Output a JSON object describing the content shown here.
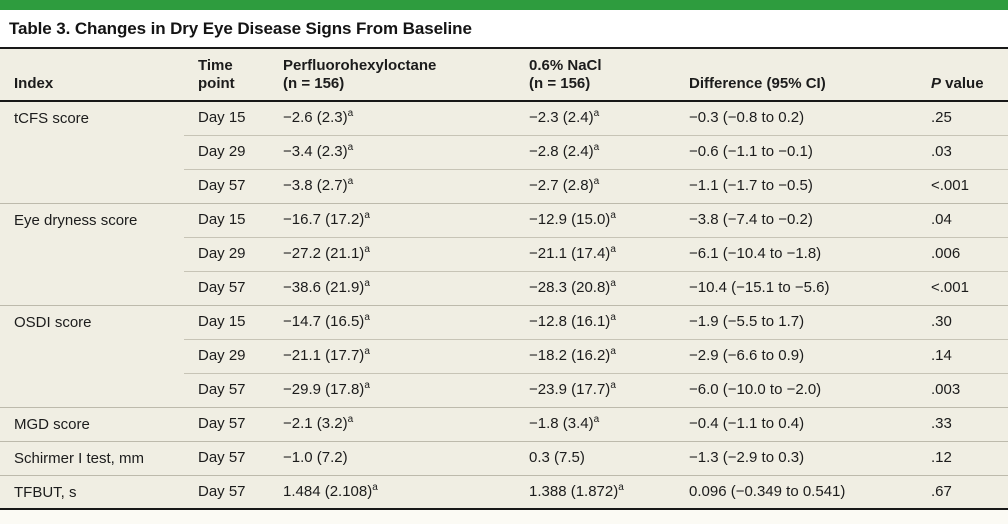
{
  "accent_color": "#2e9c3e",
  "table_background": "#f0eee3",
  "rule_color": "#181818",
  "divider_color": "#c7c4b6",
  "title": "Table 3. Changes in Dry Eye Disease Signs From Baseline",
  "columns": [
    {
      "label": "Index"
    },
    {
      "label": "Time\npoint"
    },
    {
      "label": "Perfluorohexyloctane\n(n = 156)"
    },
    {
      "label": "0.6% NaCl\n(n = 156)"
    },
    {
      "label": "Difference (95% CI)"
    },
    {
      "italic": "P",
      "rest": " value"
    }
  ],
  "footnote_marker": "a",
  "groups": [
    {
      "index": "tCFS score",
      "rows": [
        {
          "time_point": "Day 15",
          "pfho": "−2.6 (2.3)",
          "pfho_sup": "a",
          "nacl": "−2.3 (2.4)",
          "nacl_sup": "a",
          "difference": "−0.3 (−0.8 to 0.2)",
          "p_value": ".25"
        },
        {
          "time_point": "Day 29",
          "pfho": "−3.4 (2.3)",
          "pfho_sup": "a",
          "nacl": "−2.8 (2.4)",
          "nacl_sup": "a",
          "difference": "−0.6 (−1.1 to −0.1)",
          "p_value": ".03"
        },
        {
          "time_point": "Day 57",
          "pfho": "−3.8 (2.7)",
          "pfho_sup": "a",
          "nacl": "−2.7 (2.8)",
          "nacl_sup": "a",
          "difference": "−1.1 (−1.7 to −0.5)",
          "p_value": "<.001"
        }
      ]
    },
    {
      "index": "Eye dryness score",
      "rows": [
        {
          "time_point": "Day 15",
          "pfho": "−16.7 (17.2)",
          "pfho_sup": "a",
          "nacl": "−12.9 (15.0)",
          "nacl_sup": "a",
          "difference": "−3.8 (−7.4 to −0.2)",
          "p_value": ".04"
        },
        {
          "time_point": "Day 29",
          "pfho": "−27.2 (21.1)",
          "pfho_sup": "a",
          "nacl": "−21.1 (17.4)",
          "nacl_sup": "a",
          "difference": "−6.1 (−10.4 to −1.8)",
          "p_value": ".006"
        },
        {
          "time_point": "Day 57",
          "pfho": "−38.6 (21.9)",
          "pfho_sup": "a",
          "nacl": "−28.3 (20.8)",
          "nacl_sup": "a",
          "difference": "−10.4 (−15.1 to −5.6)",
          "p_value": "<.001"
        }
      ]
    },
    {
      "index": "OSDI score",
      "rows": [
        {
          "time_point": "Day 15",
          "pfho": "−14.7 (16.5)",
          "pfho_sup": "a",
          "nacl": "−12.8 (16.1)",
          "nacl_sup": "a",
          "difference": "−1.9 (−5.5 to 1.7)",
          "p_value": ".30"
        },
        {
          "time_point": "Day 29",
          "pfho": "−21.1 (17.7)",
          "pfho_sup": "a",
          "nacl": "−18.2 (16.2)",
          "nacl_sup": "a",
          "difference": "−2.9 (−6.6 to 0.9)",
          "p_value": ".14"
        },
        {
          "time_point": "Day 57",
          "pfho": "−29.9 (17.8)",
          "pfho_sup": "a",
          "nacl": "−23.9 (17.7)",
          "nacl_sup": "a",
          "difference": "−6.0 (−10.0 to −2.0)",
          "p_value": ".003"
        }
      ]
    },
    {
      "index": "MGD score",
      "rows": [
        {
          "time_point": "Day 57",
          "pfho": "−2.1 (3.2)",
          "pfho_sup": "a",
          "nacl": "−1.8 (3.4)",
          "nacl_sup": "a",
          "difference": "−0.4 (−1.1 to 0.4)",
          "p_value": ".33"
        }
      ]
    },
    {
      "index": "Schirmer I test, mm",
      "rows": [
        {
          "time_point": "Day 57",
          "pfho": "−1.0 (7.2)",
          "pfho_sup": "",
          "nacl": "0.3 (7.5)",
          "nacl_sup": "",
          "difference": "−1.3 (−2.9 to 0.3)",
          "p_value": ".12"
        }
      ]
    },
    {
      "index": "TFBUT, s",
      "rows": [
        {
          "time_point": "Day 57",
          "pfho": "1.484 (2.108)",
          "pfho_sup": "a",
          "nacl": "1.388 (1.872)",
          "nacl_sup": "a",
          "difference": "0.096 (−0.349 to 0.541)",
          "p_value": ".67"
        }
      ]
    }
  ]
}
